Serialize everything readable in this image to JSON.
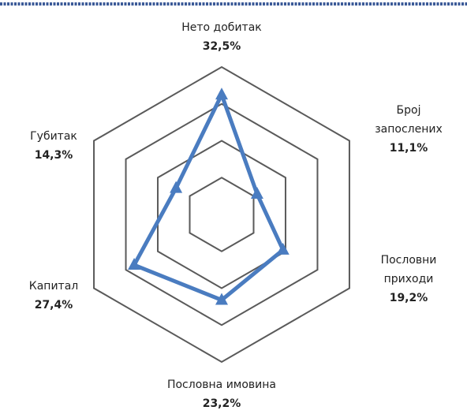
{
  "chart_data": {
    "type": "radar",
    "categories": [
      [
        "Нето добитак"
      ],
      [
        "Број",
        "запослених"
      ],
      [
        "Пословни",
        "приходи"
      ],
      [
        "Пословна имовина"
      ],
      [
        "Капитал"
      ],
      [
        "Губитак"
      ]
    ],
    "values": [
      32.5,
      11.1,
      19.2,
      23.2,
      27.4,
      14.3
    ],
    "value_labels": [
      "32,5%",
      "11,1%",
      "19,2%",
      "23,2%",
      "27,4%",
      "14,3%"
    ],
    "color": "#4a7cc0",
    "rlim": [
      0,
      40
    ],
    "rticks": [
      10,
      20,
      30,
      40
    ],
    "grid": true
  }
}
